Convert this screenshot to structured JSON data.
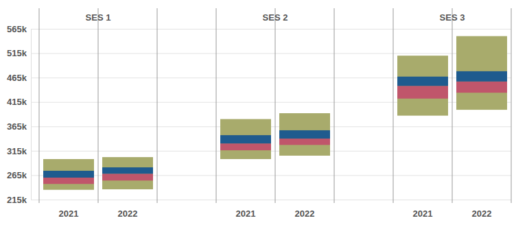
{
  "chart_data": {
    "type": "range_bar",
    "groups": [
      "SES 1",
      "SES 2",
      "SES 3"
    ],
    "categories": [
      "2021",
      "2022",
      "2021",
      "2022",
      "2021",
      "2022"
    ],
    "series": [
      {
        "color": "#a8ab6c",
        "low": [
          235000,
          236000,
          298000,
          305000,
          387000,
          399000
        ],
        "high": [
          298000,
          302000,
          380000,
          392000,
          510000,
          550000
        ]
      },
      {
        "color": "#c0566b",
        "low": [
          247000,
          254000,
          316000,
          327000,
          422000,
          434000
        ],
        "high": [
          260000,
          268000,
          330000,
          340000,
          448000,
          457000
        ]
      },
      {
        "color": "#1f5b8e",
        "low": [
          260000,
          268000,
          330000,
          340000,
          448000,
          457000
        ],
        "high": [
          274000,
          281000,
          347000,
          357000,
          467000,
          478000
        ]
      }
    ],
    "ylim": [
      215000,
      565000
    ],
    "yticks": [
      {
        "value": 215000,
        "label": "215k"
      },
      {
        "value": 265000,
        "label": "265k"
      },
      {
        "value": 315000,
        "label": "315k"
      },
      {
        "value": 365000,
        "label": "365k"
      },
      {
        "value": 415000,
        "label": "415k"
      },
      {
        "value": 465000,
        "label": "465k"
      },
      {
        "value": 515000,
        "label": "515k"
      },
      {
        "value": 565000,
        "label": "565k"
      }
    ],
    "grid": true
  }
}
